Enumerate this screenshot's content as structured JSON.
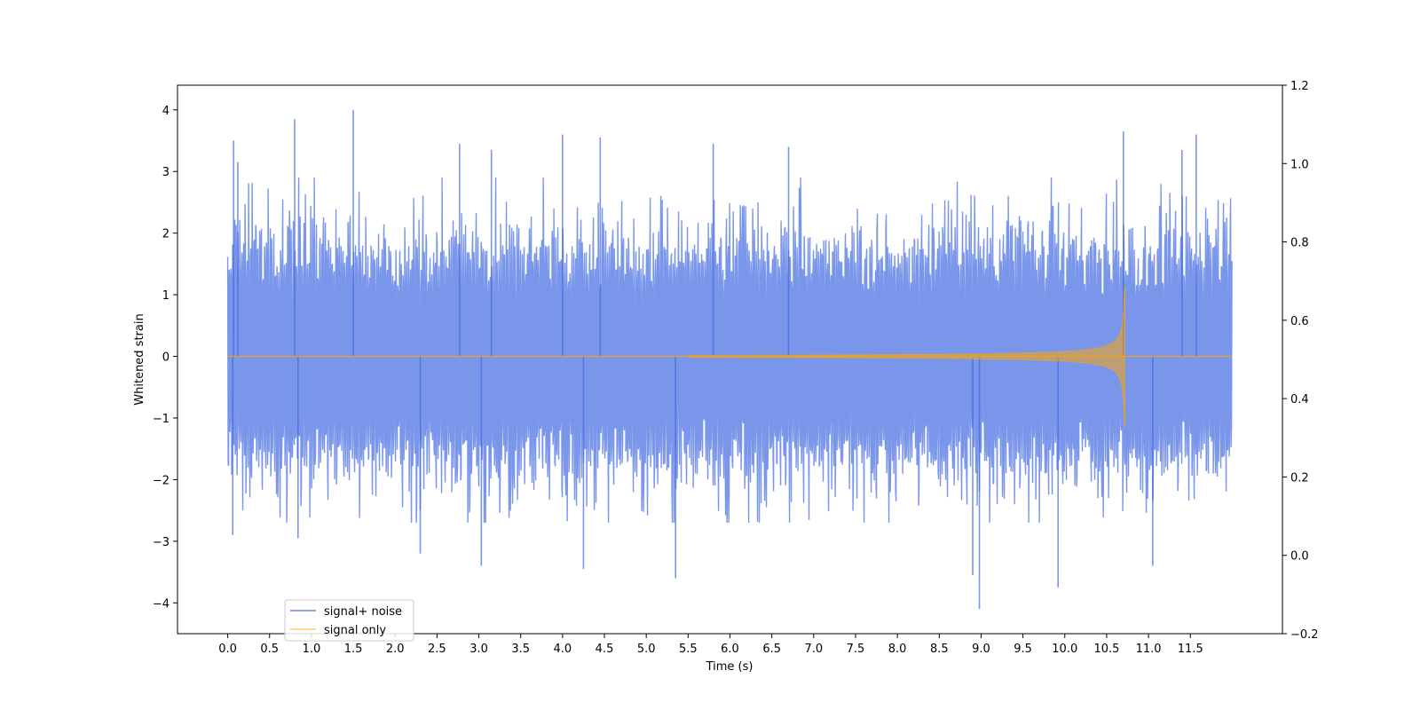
{
  "chart_data": {
    "type": "line",
    "title": "",
    "xlabel": "Time (s)",
    "ylabel": "Whitened strain",
    "y2label": "",
    "xlim": [
      -0.6,
      12.6
    ],
    "ylim": [
      -4.5,
      4.4
    ],
    "y2lim": [
      -0.2,
      1.2
    ],
    "x_ticks": [
      0.0,
      0.5,
      1.0,
      1.5,
      2.0,
      2.5,
      3.0,
      3.5,
      4.0,
      4.5,
      5.0,
      5.5,
      6.0,
      6.5,
      7.0,
      7.5,
      8.0,
      8.5,
      9.0,
      9.5,
      10.0,
      10.5,
      11.0,
      11.5
    ],
    "x_tick_labels": [
      "0.0",
      "0.5",
      "1.0",
      "1.5",
      "2.0",
      "2.5",
      "3.0",
      "3.5",
      "4.0",
      "4.5",
      "5.0",
      "5.5",
      "6.0",
      "6.5",
      "7.0",
      "7.5",
      "8.0",
      "8.5",
      "9.0",
      "9.5",
      "10.0",
      "10.5",
      "11.0",
      "11.5"
    ],
    "y_ticks": [
      -4,
      -3,
      -2,
      -1,
      0,
      1,
      2,
      3,
      4
    ],
    "y_tick_labels": [
      "−4",
      "−3",
      "−2",
      "−1",
      "0",
      "1",
      "2",
      "3",
      "4"
    ],
    "y2_ticks": [
      -0.2,
      0.0,
      0.2,
      0.4,
      0.6,
      0.8,
      1.0,
      1.2
    ],
    "y2_tick_labels": [
      "−0.2",
      "0.0",
      "0.2",
      "0.4",
      "0.6",
      "0.8",
      "1.0",
      "1.2"
    ],
    "grid": false,
    "legend_position": "lower-left",
    "series": [
      {
        "name": "signal+ noise",
        "color": "#4169e1",
        "alpha": 0.7,
        "x_range": [
          0.0,
          12.0
        ],
        "kind": "whitened gaussian noise plus chirp",
        "envelope_typical": 1.8,
        "peaks": [
          {
            "x": 0.07,
            "y": 3.5
          },
          {
            "x": 0.12,
            "y": 3.15
          },
          {
            "x": 0.8,
            "y": 3.85
          },
          {
            "x": 1.5,
            "y": 4.0
          },
          {
            "x": 2.77,
            "y": 3.45
          },
          {
            "x": 3.15,
            "y": 3.35
          },
          {
            "x": 4.0,
            "y": 3.6
          },
          {
            "x": 4.45,
            "y": 3.55
          },
          {
            "x": 5.8,
            "y": 3.45
          },
          {
            "x": 6.7,
            "y": 3.4
          },
          {
            "x": 10.7,
            "y": 3.65
          },
          {
            "x": 11.57,
            "y": 3.6
          },
          {
            "x": 11.4,
            "y": 3.35
          }
        ],
        "troughs": [
          {
            "x": 0.06,
            "y": -2.9
          },
          {
            "x": 0.84,
            "y": -2.95
          },
          {
            "x": 2.3,
            "y": -3.2
          },
          {
            "x": 3.03,
            "y": -3.4
          },
          {
            "x": 4.25,
            "y": -3.45
          },
          {
            "x": 5.35,
            "y": -3.6
          },
          {
            "x": 8.9,
            "y": -3.55
          },
          {
            "x": 8.98,
            "y": -4.1
          },
          {
            "x": 9.92,
            "y": -3.75
          },
          {
            "x": 11.05,
            "y": -3.4
          }
        ]
      },
      {
        "name": "signal only",
        "color": "#ffa500",
        "alpha": 0.5,
        "x_range": [
          0.0,
          12.0
        ],
        "kind": "inspiral chirp",
        "merger_time": 10.72,
        "peak_amplitude": 1.15,
        "baseline": 0.0
      }
    ]
  }
}
